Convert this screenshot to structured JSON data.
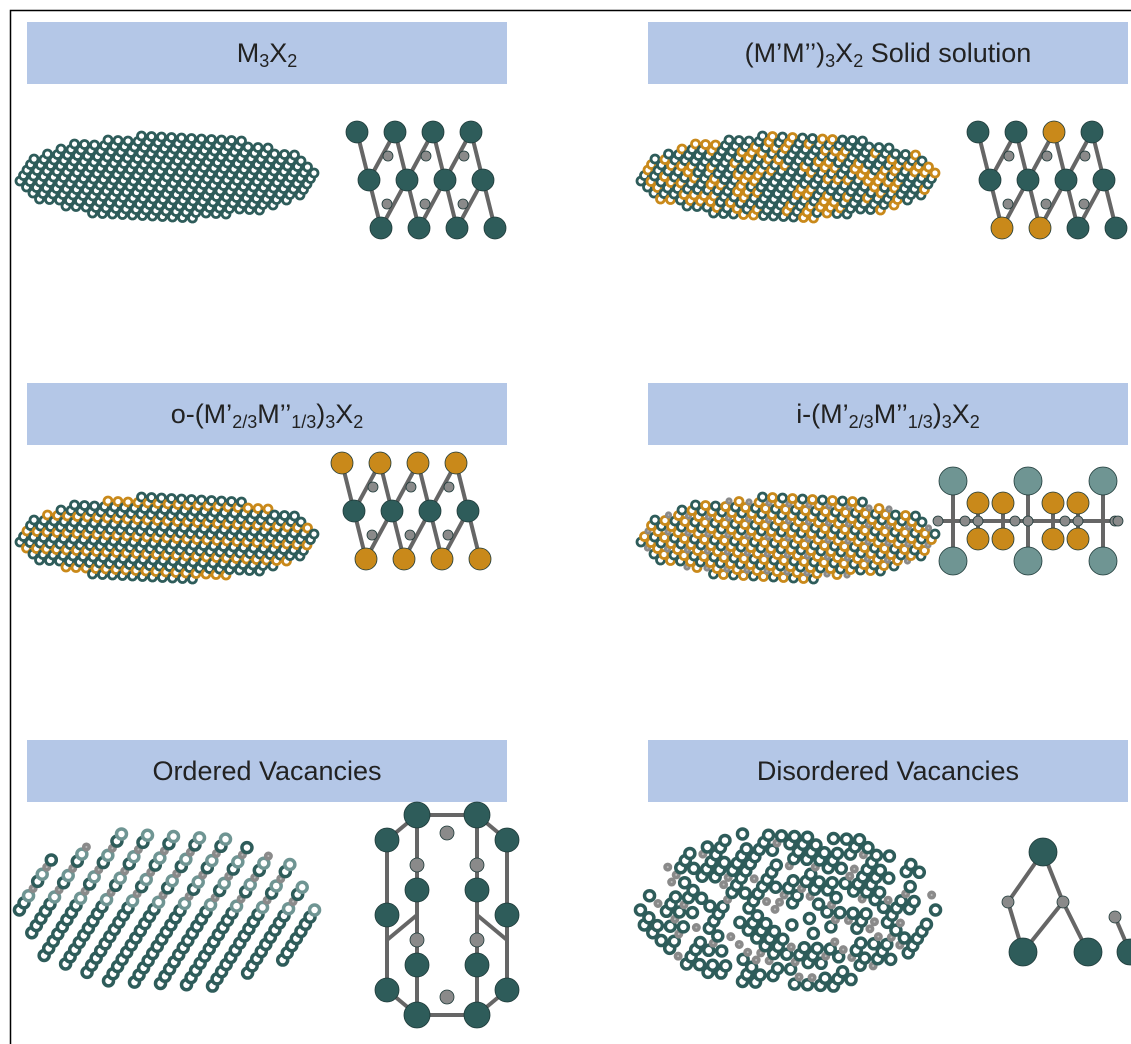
{
  "panels": [
    {
      "title": [
        {
          "text": "M"
        },
        {
          "sub": "3"
        },
        {
          "text": "X"
        },
        {
          "sub": "2"
        }
      ]
    },
    {
      "title": [
        {
          "text": "(M’M’’)"
        },
        {
          "sub": "3"
        },
        {
          "text": "X"
        },
        {
          "sub": "2"
        },
        {
          "text": " Solid solution"
        }
      ]
    },
    {
      "title": [
        {
          "text": "o-(M’"
        },
        {
          "sub": "2/3"
        },
        {
          "text": "M’’"
        },
        {
          "sub": "1/3"
        },
        {
          "text": ")"
        },
        {
          "sub": "3"
        },
        {
          "text": "X"
        },
        {
          "sub": "2"
        }
      ]
    },
    {
      "title": [
        {
          "text": "i-(M’"
        },
        {
          "sub": "2/3"
        },
        {
          "text": "M’’"
        },
        {
          "sub": "1/3"
        },
        {
          "text": ")"
        },
        {
          "sub": "3"
        },
        {
          "text": "X"
        },
        {
          "sub": "2"
        }
      ]
    },
    {
      "title": [
        {
          "text": "Ordered Vacancies"
        }
      ]
    },
    {
      "title": [
        {
          "text": "Disordered Vacancies"
        }
      ]
    }
  ]
}
